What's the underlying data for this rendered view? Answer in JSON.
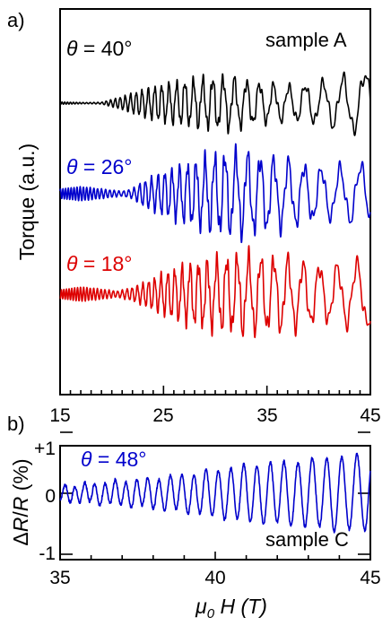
{
  "chart_data": [
    {
      "type": "line",
      "panel_label": "a)",
      "ylabel": "Torque (a.u.)",
      "xlim": [
        15,
        45
      ],
      "x_ticks": [
        "15",
        "25",
        "35",
        "45"
      ],
      "annotation": "sample A",
      "series": [
        {
          "name": "θ = 40°",
          "color": "#000000",
          "label_parts": {
            "sym": "θ",
            "rest": " = 40°"
          },
          "envelope_x": [
            15,
            17.5,
            19,
            21,
            23,
            25,
            27,
            29,
            31,
            33,
            35,
            37,
            39,
            41,
            43,
            44.5,
            45
          ],
          "envelope_amp": [
            0.04,
            0.02,
            0.03,
            0.22,
            0.45,
            0.62,
            0.72,
            0.8,
            0.84,
            0.72,
            0.62,
            0.55,
            0.62,
            0.72,
            0.88,
            1.0,
            1.1
          ]
        },
        {
          "name": "θ = 26°",
          "color": "#0000cc",
          "label_parts": {
            "sym": "θ",
            "rest": " = 26°"
          },
          "envelope_x": [
            15,
            17,
            19,
            21,
            22,
            23,
            25,
            27,
            29,
            31,
            33,
            35,
            37,
            39,
            41,
            43,
            45
          ],
          "envelope_amp": [
            0.12,
            0.18,
            0.12,
            0.06,
            0.12,
            0.3,
            0.52,
            0.68,
            0.84,
            0.95,
            0.95,
            0.85,
            0.78,
            0.65,
            0.58,
            0.65,
            0.7
          ]
        },
        {
          "name": "θ = 18°",
          "color": "#dd0000",
          "label_parts": {
            "sym": "θ",
            "rest": " = 18°"
          },
          "envelope_x": [
            15,
            17,
            19,
            20.5,
            22,
            23.5,
            25,
            27,
            29,
            31,
            33,
            35,
            37,
            39,
            41,
            43,
            45
          ],
          "envelope_amp": [
            0.12,
            0.2,
            0.14,
            0.08,
            0.18,
            0.35,
            0.55,
            0.75,
            0.85,
            0.95,
            1.0,
            0.95,
            0.92,
            0.78,
            0.7,
            0.8,
            0.85
          ]
        }
      ]
    },
    {
      "type": "line",
      "panel_label": "b)",
      "xlabel_parts": {
        "mu": "μ",
        "sub": "0",
        "rest": " H (T)"
      },
      "ylabel_parts": {
        "delta": "Δ",
        "r": "R",
        "slash": "/",
        "r2": "R",
        "unit": " (%)"
      },
      "xlim": [
        35,
        45
      ],
      "ylim": [
        -1,
        1
      ],
      "x_ticks": [
        "35",
        "40",
        "45"
      ],
      "y_ticks": [
        "+1",
        "0",
        "-1"
      ],
      "annotation": "sample C",
      "series": [
        {
          "name": "θ = 48°",
          "color": "#0000cc",
          "label_parts": {
            "sym": "θ",
            "rest": " = 48°"
          },
          "envelope_x": [
            35,
            36,
            37,
            38,
            39,
            40,
            41,
            42,
            43,
            44,
            45
          ],
          "envelope_amp": [
            0.12,
            0.16,
            0.2,
            0.24,
            0.3,
            0.38,
            0.46,
            0.5,
            0.55,
            0.6,
            0.62
          ]
        }
      ]
    }
  ]
}
